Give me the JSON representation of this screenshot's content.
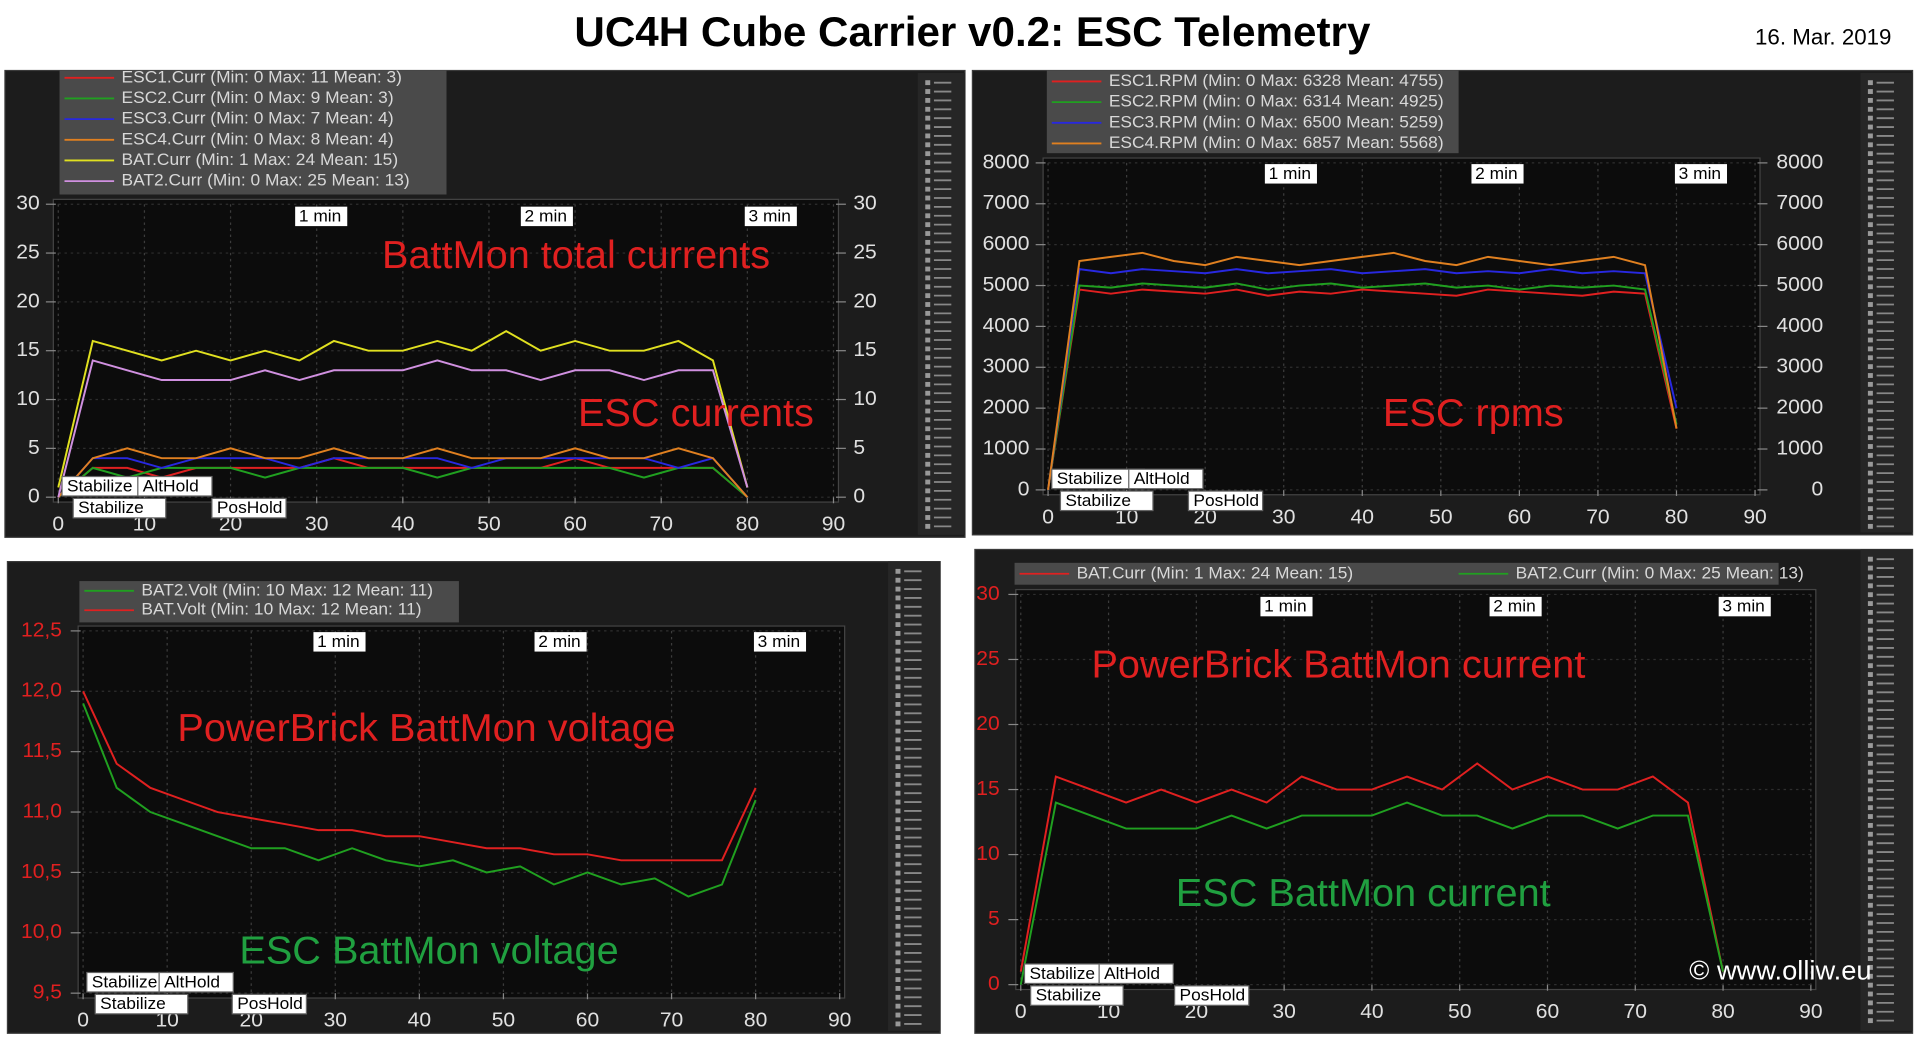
{
  "title": "UC4H Cube Carrier v0.2: ESC Telemetry",
  "date": "16. Mar. 2019",
  "copyright": "© www.olliw.eu",
  "chart_data": [
    {
      "type": "line",
      "grid": true,
      "x": [
        0,
        4,
        8,
        12,
        16,
        20,
        24,
        28,
        32,
        36,
        40,
        44,
        48,
        52,
        56,
        60,
        64,
        68,
        72,
        76,
        80
      ],
      "xlim": [
        0,
        90
      ],
      "xticks": [
        0,
        10,
        20,
        30,
        40,
        50,
        60,
        70,
        80,
        90
      ],
      "ylim": [
        0,
        30
      ],
      "yticks": [
        0,
        5,
        10,
        15,
        20,
        25,
        30
      ],
      "y2lim": [
        0,
        30
      ],
      "y2ticks": [
        0,
        5,
        10,
        15,
        20,
        25,
        30
      ],
      "series": [
        {
          "name": "ESC1.Curr (Min: 0 Max: 11 Mean: 3)",
          "color": "#e02020",
          "values": [
            0,
            3,
            3,
            2,
            3,
            3,
            3,
            3,
            4,
            3,
            3,
            3,
            3,
            3,
            3,
            4,
            3,
            3,
            3,
            3,
            0
          ]
        },
        {
          "name": "ESC2.Curr (Min: 0 Max: 9 Mean: 3)",
          "color": "#20a020",
          "values": [
            0,
            3,
            2,
            3,
            3,
            3,
            2,
            3,
            3,
            3,
            3,
            2,
            3,
            3,
            3,
            3,
            3,
            2,
            3,
            3,
            0
          ]
        },
        {
          "name": "ESC3.Curr (Min: 0 Max: 7 Mean: 4)",
          "color": "#2828e0",
          "values": [
            0,
            4,
            4,
            3,
            4,
            4,
            4,
            3,
            4,
            4,
            4,
            4,
            3,
            4,
            4,
            4,
            4,
            4,
            3,
            4,
            0
          ]
        },
        {
          "name": "ESC4.Curr (Min: 0 Max: 8 Mean: 4)",
          "color": "#e08020",
          "values": [
            0,
            4,
            5,
            4,
            4,
            5,
            4,
            4,
            5,
            4,
            4,
            5,
            4,
            4,
            4,
            5,
            4,
            4,
            5,
            4,
            0
          ]
        },
        {
          "name": "BAT.Curr (Min: 1 Max: 24 Mean: 15)",
          "color": "#e0e020",
          "values": [
            1,
            16,
            15,
            14,
            15,
            14,
            15,
            14,
            16,
            15,
            15,
            16,
            15,
            17,
            15,
            16,
            15,
            15,
            16,
            14,
            1
          ]
        },
        {
          "name": "BAT2.Curr (Min: 0 Max: 25 Mean: 13)",
          "color": "#d090e0",
          "values": [
            0,
            14,
            13,
            12,
            12,
            12,
            13,
            12,
            13,
            13,
            13,
            14,
            13,
            13,
            12,
            13,
            13,
            12,
            13,
            13,
            1
          ]
        }
      ],
      "markers": [
        {
          "label": "1 min",
          "x": 27.5
        },
        {
          "label": "2 min",
          "x": 53.7
        },
        {
          "label": "3 min",
          "x": 79.7
        }
      ],
      "modes": [
        {
          "label": "Stabilize",
          "x": 0
        },
        {
          "label": "AltHold",
          "x": 8.8
        },
        {
          "label": "Stabilize",
          "x": 1.3
        },
        {
          "label": "PosHold",
          "x": 17.4
        }
      ],
      "annotations": [
        {
          "text": "BattMon total currents",
          "color": "#e02020"
        },
        {
          "text": "ESC currents",
          "color": "#e02020"
        }
      ]
    },
    {
      "type": "line",
      "grid": true,
      "x": [
        0,
        4,
        8,
        12,
        16,
        20,
        24,
        28,
        32,
        36,
        40,
        44,
        48,
        52,
        56,
        60,
        64,
        68,
        72,
        76,
        80
      ],
      "xlim": [
        0,
        90
      ],
      "xticks": [
        0,
        10,
        20,
        30,
        40,
        50,
        60,
        70,
        80,
        90
      ],
      "ylim": [
        0,
        8000
      ],
      "yticks": [
        0,
        1000,
        2000,
        3000,
        4000,
        5000,
        6000,
        7000,
        8000
      ],
      "y2lim": [
        0,
        8000
      ],
      "y2ticks": [
        0,
        1000,
        2000,
        3000,
        4000,
        5000,
        6000,
        7000,
        8000
      ],
      "series": [
        {
          "name": "ESC1.RPM (Min: 0 Max: 6328 Mean: 4755)",
          "color": "#e02020",
          "values": [
            0,
            4900,
            4800,
            4900,
            4850,
            4800,
            4900,
            4750,
            4850,
            4800,
            4900,
            4850,
            4800,
            4750,
            4900,
            4850,
            4800,
            4750,
            4850,
            4800,
            1500
          ]
        },
        {
          "name": "ESC2.RPM (Min: 0 Max: 6314 Mean: 4925)",
          "color": "#20a020",
          "values": [
            0,
            5000,
            4950,
            5050,
            5000,
            4950,
            5050,
            4900,
            5000,
            5050,
            4950,
            5000,
            5050,
            4950,
            5000,
            4900,
            5000,
            4950,
            5000,
            4900,
            1600
          ]
        },
        {
          "name": "ESC3.RPM (Min: 0 Max: 6500 Mean: 5259)",
          "color": "#2828e0",
          "values": [
            0,
            5400,
            5300,
            5400,
            5350,
            5300,
            5400,
            5300,
            5350,
            5400,
            5300,
            5350,
            5400,
            5300,
            5350,
            5300,
            5400,
            5300,
            5350,
            5300,
            2000
          ]
        },
        {
          "name": "ESC4.RPM (Min: 0 Max: 6857 Mean: 5568)",
          "color": "#e08020",
          "values": [
            0,
            5600,
            5700,
            5800,
            5600,
            5500,
            5700,
            5600,
            5500,
            5600,
            5700,
            5800,
            5600,
            5500,
            5700,
            5600,
            5500,
            5600,
            5700,
            5500,
            1500
          ]
        }
      ],
      "markers": [
        {
          "label": "1 min",
          "x": 27.6
        },
        {
          "label": "2 min",
          "x": 53.9
        },
        {
          "label": "3 min",
          "x": 79.8
        }
      ],
      "modes": [
        {
          "label": "Stabilize",
          "x": 0
        },
        {
          "label": "AltHold",
          "x": 9.8
        },
        {
          "label": "Stabilize",
          "x": 1.1
        },
        {
          "label": "PosHold",
          "x": 17.4
        }
      ],
      "annotations": [
        {
          "text": "ESC rpms",
          "color": "#e02020"
        }
      ]
    },
    {
      "type": "line",
      "grid": true,
      "x": [
        0,
        4,
        8,
        12,
        16,
        20,
        24,
        28,
        32,
        36,
        40,
        44,
        48,
        52,
        56,
        60,
        64,
        68,
        72,
        76,
        80
      ],
      "xlim": [
        0,
        90
      ],
      "xticks": [
        0,
        10,
        20,
        30,
        40,
        50,
        60,
        70,
        80,
        90
      ],
      "ylim": [
        9.5,
        12.5
      ],
      "yticks": [
        {
          "value": 9.5,
          "label": "9,5"
        },
        {
          "value": 10,
          "label": "10,0"
        },
        {
          "value": 10.5,
          "label": "10,5"
        },
        {
          "value": 11,
          "label": "11,0"
        },
        {
          "value": 11.5,
          "label": "11,5"
        },
        {
          "value": 12,
          "label": "12,0"
        },
        {
          "value": 12.5,
          "label": "12,5"
        }
      ],
      "series": [
        {
          "name": "BAT2.Volt (Min: 10 Max: 12 Mean: 11)",
          "color": "#20a020",
          "values": [
            11.9,
            11.2,
            11.0,
            10.9,
            10.8,
            10.7,
            10.7,
            10.6,
            10.7,
            10.6,
            10.55,
            10.6,
            10.5,
            10.55,
            10.4,
            10.5,
            10.4,
            10.45,
            10.3,
            10.4,
            11.1
          ]
        },
        {
          "name": "BAT.Volt (Min: 10 Max: 12 Mean: 11)",
          "color": "#e02020",
          "values": [
            12.0,
            11.4,
            11.2,
            11.1,
            11.0,
            10.95,
            10.9,
            10.85,
            10.85,
            10.8,
            10.8,
            10.75,
            10.7,
            10.7,
            10.65,
            10.65,
            10.6,
            10.6,
            10.6,
            10.6,
            11.2
          ]
        }
      ],
      "markers": [
        {
          "label": "1 min",
          "x": 27.4
        },
        {
          "label": "2 min",
          "x": 53.7
        },
        {
          "label": "3 min",
          "x": 79.8
        }
      ],
      "modes": [
        {
          "label": "Stabilize",
          "x": 0
        },
        {
          "label": "AltHold",
          "x": 8.6
        },
        {
          "label": "Stabilize",
          "x": 1
        },
        {
          "label": "PosHold",
          "x": 17.3
        }
      ],
      "annotations": [
        {
          "text": "PowerBrick BattMon voltage",
          "color": "#e02020"
        },
        {
          "text": "ESC BattMon voltage",
          "color": "#20a040"
        }
      ]
    },
    {
      "type": "line",
      "grid": true,
      "x": [
        0,
        4,
        8,
        12,
        16,
        20,
        24,
        28,
        32,
        36,
        40,
        44,
        48,
        52,
        56,
        60,
        64,
        68,
        72,
        76,
        80
      ],
      "xlim": [
        0,
        90
      ],
      "xticks": [
        0,
        10,
        20,
        30,
        40,
        50,
        60,
        70,
        80,
        90
      ],
      "ylim": [
        0,
        30
      ],
      "yticks": [
        0,
        5,
        10,
        15,
        20,
        25,
        30
      ],
      "series": [
        {
          "name": "BAT.Curr (Min: 1 Max: 24 Mean: 15)",
          "color": "#e02020",
          "values": [
            1,
            16,
            15,
            14,
            15,
            14,
            15,
            14,
            16,
            15,
            15,
            16,
            15,
            17,
            15,
            16,
            15,
            15,
            16,
            14,
            1
          ]
        },
        {
          "name": "BAT2.Curr (Min: 0 Max: 25 Mean: 13)",
          "color": "#20a020",
          "values": [
            0,
            14,
            13,
            12,
            12,
            12,
            13,
            12,
            13,
            13,
            13,
            14,
            13,
            13,
            12,
            13,
            13,
            12,
            13,
            13,
            1
          ]
        }
      ],
      "markers": [
        {
          "label": "1 min",
          "x": 27.3
        },
        {
          "label": "2 min",
          "x": 53.4
        },
        {
          "label": "3 min",
          "x": 79.5
        }
      ],
      "modes": [
        {
          "label": "Stabilize",
          "x": 0
        },
        {
          "label": "AltHold",
          "x": 8.5
        },
        {
          "label": "Stabilize",
          "x": 0.7
        },
        {
          "label": "PosHold",
          "x": 17.1
        }
      ],
      "annotations": [
        {
          "text": "PowerBrick BattMon current",
          "color": "#e02020"
        },
        {
          "text": "ESC BattMon current",
          "color": "#20a040"
        }
      ]
    }
  ]
}
